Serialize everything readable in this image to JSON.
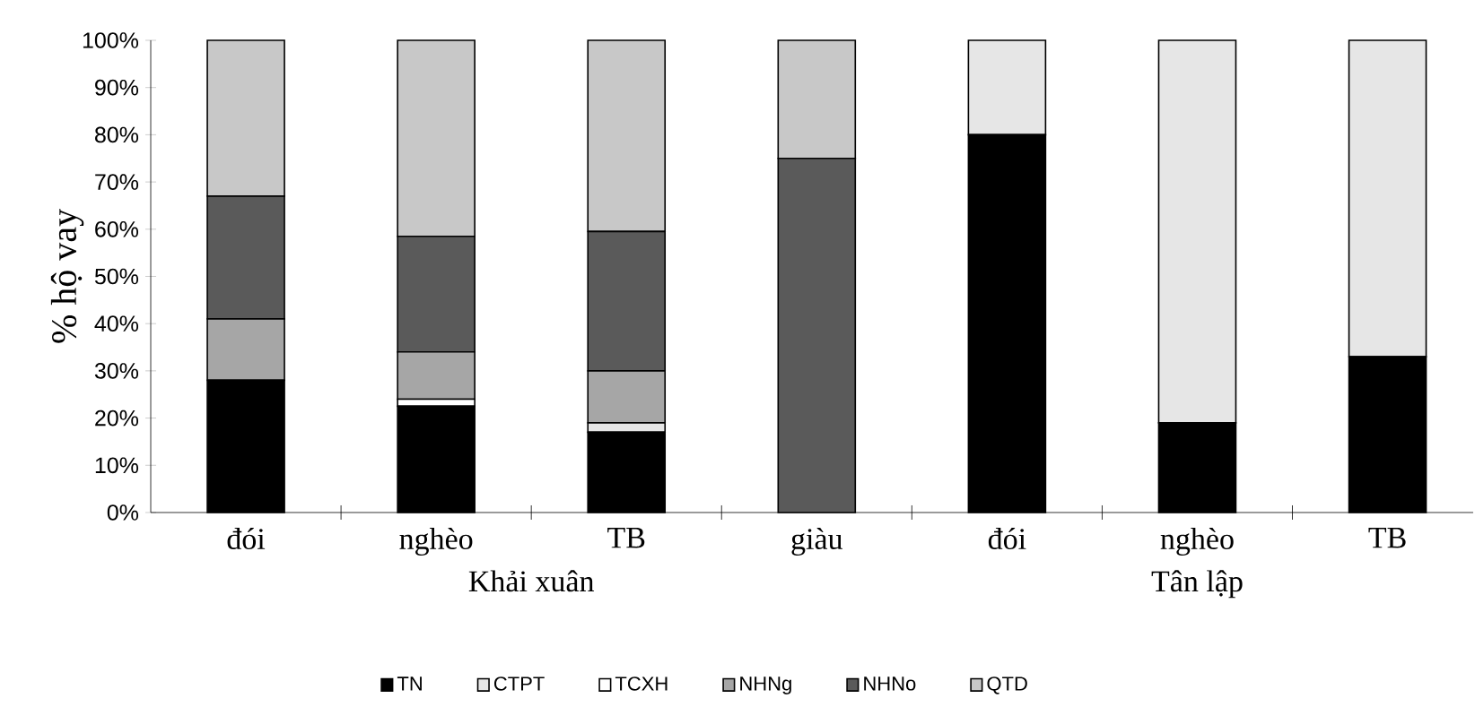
{
  "chart_data": {
    "type": "bar",
    "stacked": true,
    "ylabel": "% hộ vay",
    "categories": [
      "đói",
      "nghèo",
      "TB",
      "giàu",
      "đói",
      "nghèo",
      "TB"
    ],
    "series": [
      {
        "name": "TN",
        "color": "#000000",
        "values": [
          28,
          22.5,
          17,
          0,
          80,
          19,
          33
        ]
      },
      {
        "name": "CTPT",
        "color": "#e6e6e6",
        "values": [
          0,
          0,
          2,
          0,
          20,
          81,
          67
        ]
      },
      {
        "name": "TCXH",
        "color": "#ffffff",
        "values": [
          0,
          1.5,
          0,
          0,
          0,
          0,
          0
        ]
      },
      {
        "name": "NHNg",
        "color": "#a6a6a6",
        "values": [
          13,
          10,
          11,
          0,
          0,
          0,
          0
        ]
      },
      {
        "name": "NHNo",
        "color": "#5a5a5a",
        "values": [
          26,
          24.5,
          29.5,
          75,
          0,
          0,
          0
        ]
      },
      {
        "name": "QTD",
        "color": "#c8c8c8",
        "values": [
          33,
          41.5,
          40.5,
          25,
          0,
          0,
          0
        ]
      }
    ],
    "ylim": [
      0,
      100
    ],
    "yticks": [
      {
        "value": 0,
        "label": "0%"
      },
      {
        "value": 10,
        "label": "10%"
      },
      {
        "value": 20,
        "label": "20%"
      },
      {
        "value": 30,
        "label": "30%"
      },
      {
        "value": 40,
        "label": "40%"
      },
      {
        "value": 50,
        "label": "50%"
      },
      {
        "value": 60,
        "label": "60%"
      },
      {
        "value": 70,
        "label": "70%"
      },
      {
        "value": 80,
        "label": "80%"
      },
      {
        "value": 90,
        "label": "90%"
      },
      {
        "value": 100,
        "label": "100%"
      }
    ],
    "annotations": [
      "Khải xuân",
      "Tân lập"
    ],
    "grid": false,
    "legend": "bottom"
  }
}
